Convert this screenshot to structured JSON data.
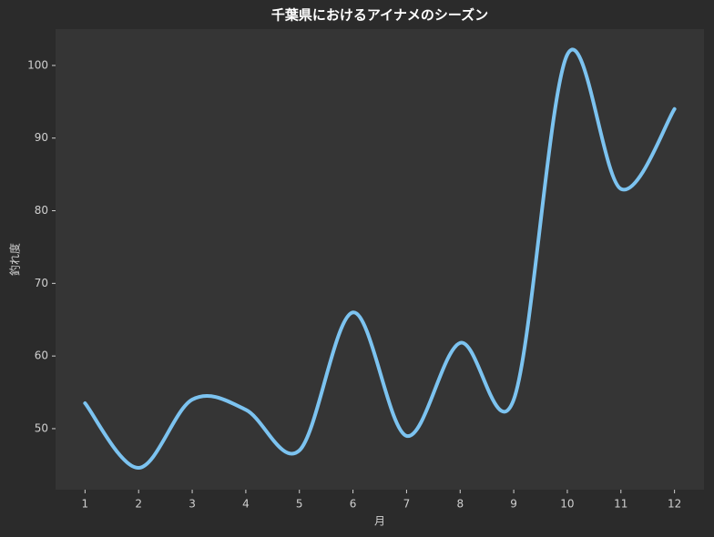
{
  "chart_data": {
    "type": "line",
    "title": "千葉県におけるアイナメのシーズン",
    "x_label": "月",
    "y_label": "釣れ度",
    "x": [
      1,
      2,
      3,
      4,
      5,
      6,
      7,
      8,
      9,
      10,
      11,
      12
    ],
    "series": [
      {
        "color": "#7cc3f0",
        "values": [
          53.5,
          44.6,
          54,
          52.6,
          47,
          66,
          49,
          61.8,
          54,
          101.5,
          83,
          94
        ]
      }
    ],
    "xlim": [
      0.45,
      12.55
    ],
    "ylim": [
      41.6,
      105
    ],
    "xticks": [
      1,
      2,
      3,
      4,
      5,
      6,
      7,
      8,
      9,
      10,
      11,
      12
    ],
    "yticks": [
      50,
      60,
      70,
      80,
      90,
      100
    ],
    "grid": false
  }
}
